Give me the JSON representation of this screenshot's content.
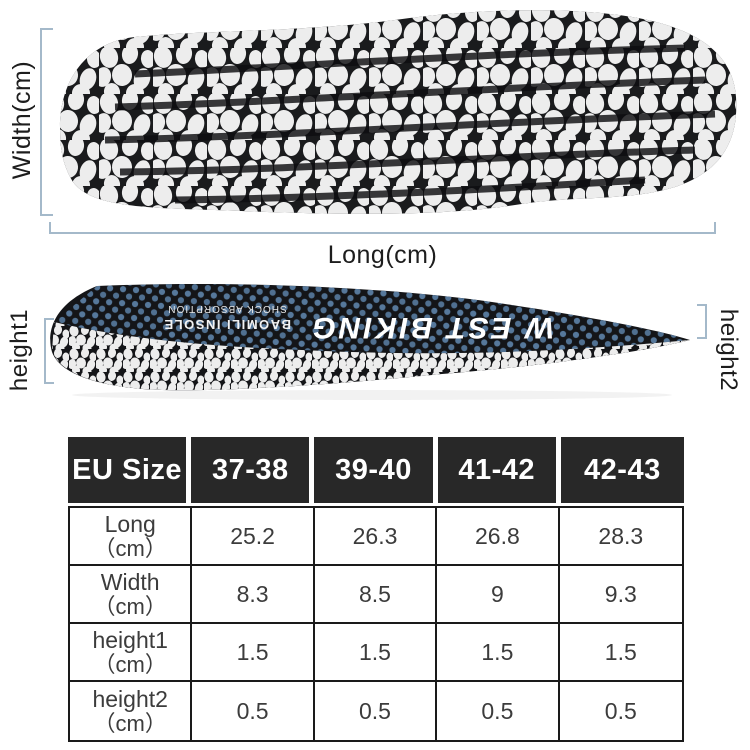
{
  "colors": {
    "bracket": "#a4b9ca",
    "label": "#1d1d1d",
    "soleblack": "#1a1b1d",
    "pebble": "#ededed",
    "dotblue": "#5b80a6",
    "hdrbg": "#282828",
    "hdrtext": "#ffffff",
    "tborder": "#1a1a1a",
    "celltext": "#3c3c3c"
  },
  "diagram": {
    "width_label": "Width(cm)",
    "long_label": "Long(cm)",
    "height1_label": "height1",
    "height2_label": "height2",
    "brand_text": "W EST BIKING",
    "insole_text_line1": "BAOMILI INSOLE",
    "insole_text_line2": "SHOCK ABSORPTION"
  },
  "size_table": {
    "header": [
      "EU Size",
      "37-38",
      "39-40",
      "41-42",
      "42-43"
    ],
    "rows": [
      {
        "label": "Long",
        "unit": "（cm）",
        "values": [
          "25.2",
          "26.3",
          "26.8",
          "28.3"
        ]
      },
      {
        "label": "Width",
        "unit": "（cm）",
        "values": [
          "8.3",
          "8.5",
          "9",
          "9.3"
        ]
      },
      {
        "label": "height1",
        "unit": "（cm）",
        "values": [
          "1.5",
          "1.5",
          "1.5",
          "1.5"
        ]
      },
      {
        "label": "height2",
        "unit": "（cm）",
        "values": [
          "0.5",
          "0.5",
          "0.5",
          "0.5"
        ]
      }
    ]
  }
}
